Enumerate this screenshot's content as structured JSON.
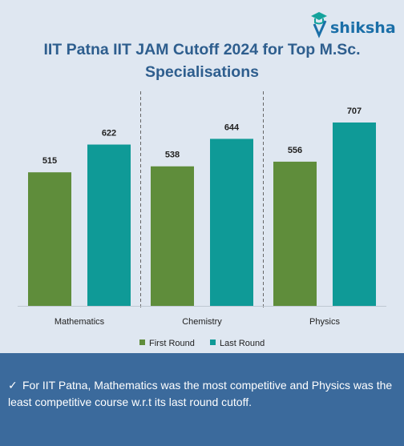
{
  "brand": {
    "name": "shiksha"
  },
  "footer": {
    "note": "For IIT Patna, Mathematics was the most competitive and Physics was the least competitive course w.r.t its last round cutoff."
  },
  "colors": {
    "first_round": "#5f8d3b",
    "last_round": "#0f9a97",
    "title": "#2e5e8e",
    "footer_bg": "#3b6a9c"
  },
  "chart_data": {
    "type": "bar",
    "title_line1": "IIT Patna IIT JAM Cutoff 2024 for Top M.Sc.",
    "title_line2": "Specialisations",
    "categories": [
      "Mathematics",
      "Chemistry",
      "Physics"
    ],
    "series": [
      {
        "name": "First Round",
        "values": [
          515,
          538,
          556
        ]
      },
      {
        "name": "Last Round",
        "values": [
          622,
          644,
          707
        ]
      }
    ],
    "ylim": [
      0,
      707
    ],
    "grid": false,
    "legend": "bottom"
  }
}
